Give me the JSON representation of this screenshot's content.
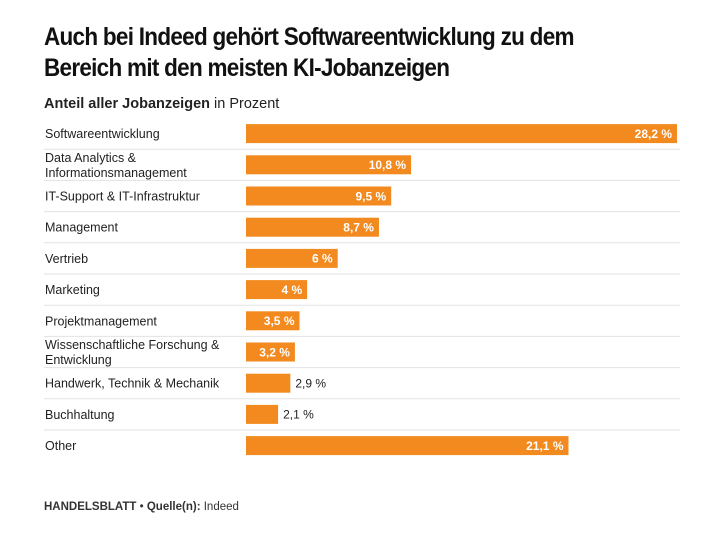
{
  "title": "Auch bei Indeed gehört Softwareentwicklung zu dem Bereich mit den meisten KI-Jobanzeigen",
  "subtitle": {
    "bold": "Anteil aller Jobanzeigen",
    "regular": "in Prozent"
  },
  "footer": {
    "brand": "HANDELSBLATT",
    "separator": "•",
    "source_label": "Quelle(n):",
    "source": "Indeed"
  },
  "colors": {
    "bar": "#f28a1f",
    "label_inside": "#ffffff",
    "label_outside": "#222222",
    "divider": "#e3e3e3"
  },
  "chart_data": {
    "type": "bar",
    "orientation": "horizontal",
    "title": "Auch bei Indeed gehört Softwareentwicklung zu dem Bereich mit den meisten KI-Jobanzeigen",
    "subtitle": "Anteil aller Jobanzeigen in Prozent",
    "xlim": [
      0,
      28.2
    ],
    "grid": false,
    "legend": "none",
    "categories": [
      [
        "Softwareentwicklung"
      ],
      [
        "Data Analytics &",
        "Informationsmanagement"
      ],
      [
        "IT-Support & IT-Infrastruktur"
      ],
      [
        "Management"
      ],
      [
        "Vertrieb"
      ],
      [
        "Marketing"
      ],
      [
        "Projektmanagement"
      ],
      [
        "Wissenschaftliche Forschung &",
        "Entwicklung"
      ],
      [
        "Handwerk, Technik & Mechanik"
      ],
      [
        "Buchhaltung"
      ],
      [
        "Other"
      ]
    ],
    "values": [
      28.2,
      10.8,
      9.5,
      8.7,
      6,
      4,
      3.5,
      3.2,
      2.9,
      2.1,
      21.1
    ],
    "value_labels": [
      "28,2 %",
      "10,8 %",
      "9,5 %",
      "8,7 %",
      "6 %",
      "4 %",
      "3,5 %",
      "3,2 %",
      "2,9 %",
      "2,1 %",
      "21,1 %"
    ]
  }
}
